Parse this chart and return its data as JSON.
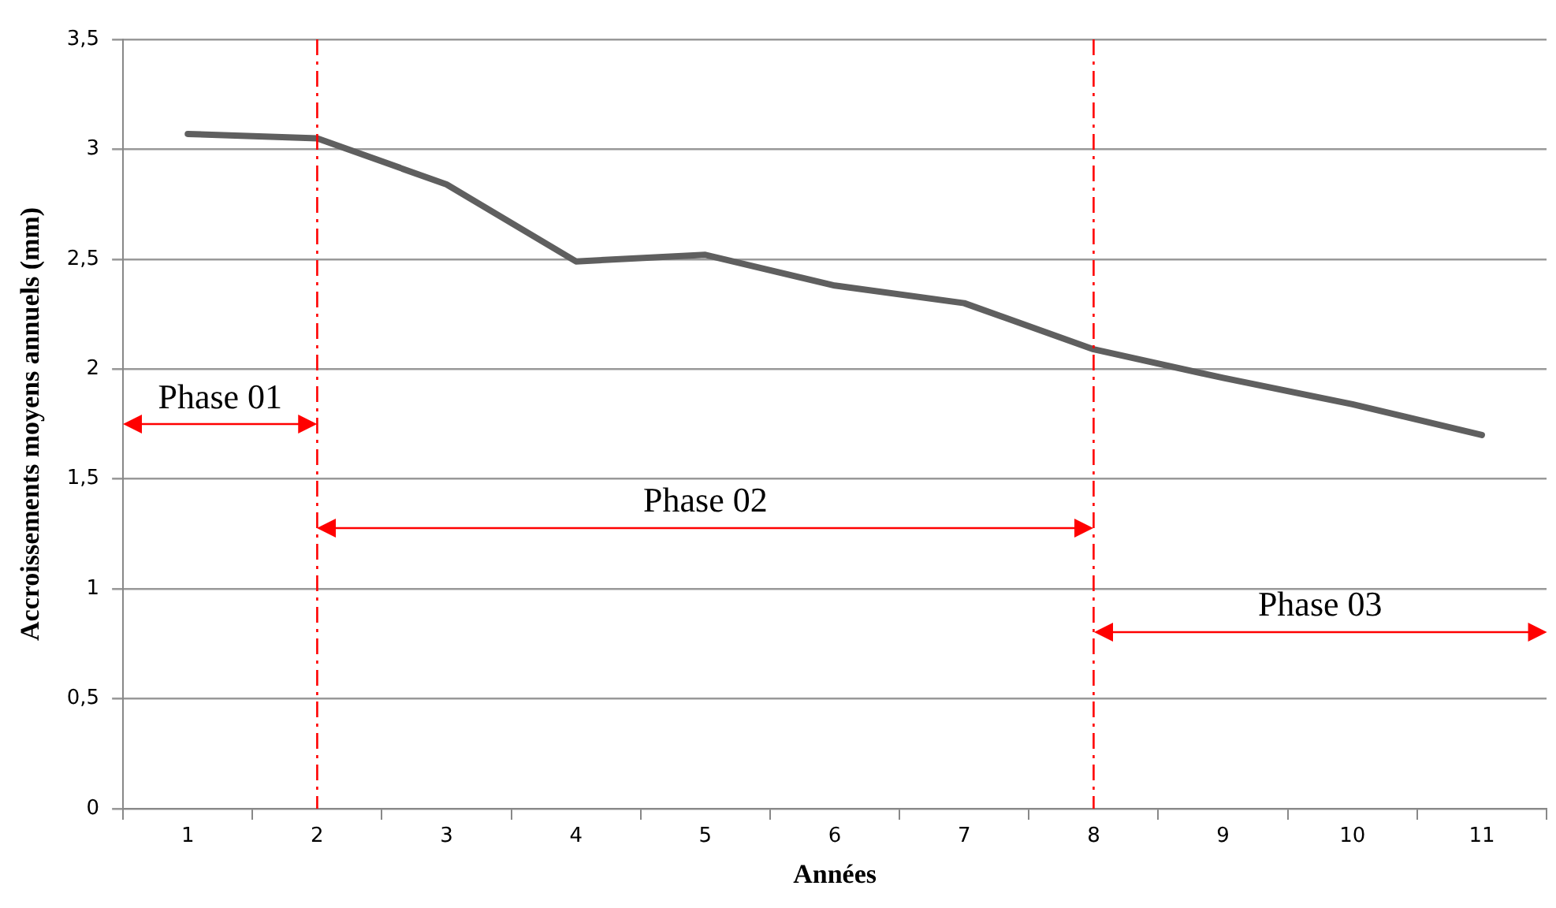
{
  "chart_data": {
    "type": "line",
    "xlabel": "Années",
    "ylabel": "Accroissements moyens annuels (mm)",
    "categories": [
      "1",
      "2",
      "3",
      "4",
      "5",
      "6",
      "7",
      "8",
      "9",
      "10",
      "11"
    ],
    "series": [
      {
        "color": "#5f5f5f",
        "values": [
          3.07,
          3.05,
          2.84,
          2.49,
          2.52,
          2.38,
          2.3,
          2.09,
          1.96,
          1.84,
          1.7
        ]
      }
    ],
    "ylim": [
      0,
      3.5
    ],
    "yticks": [
      0,
      {
        "value": 0.5,
        "label": "0,5"
      },
      1,
      {
        "value": 1.5,
        "label": "1,5"
      },
      2,
      {
        "value": 2.5,
        "label": "2,5"
      },
      3,
      {
        "value": 3.5,
        "label": "3,5"
      }
    ],
    "grid": "y",
    "legend": false,
    "marker": "none",
    "line_style": "solid",
    "ref_lines": [
      {
        "axis": "x",
        "value": "2",
        "color": "#ff0000",
        "line_style": "dashdot"
      },
      {
        "axis": "x",
        "value": "8",
        "color": "#ff0000",
        "line_style": "dashdot"
      }
    ],
    "annotations": [
      "Phase 01",
      "Phase 02",
      "Phase 03"
    ]
  }
}
